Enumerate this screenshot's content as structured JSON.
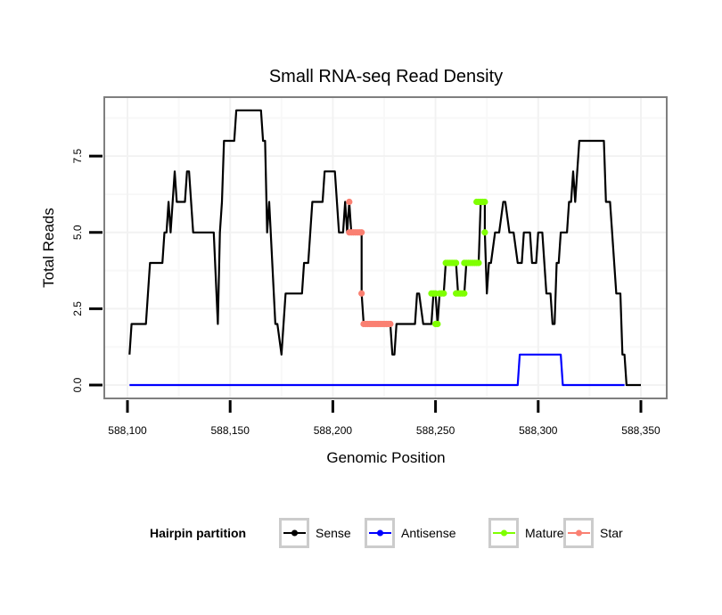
{
  "chart_data": {
    "type": "line",
    "title": "Small RNA-seq Read Density",
    "xlabel": "Genomic Position",
    "ylabel": "Total Reads",
    "x_base": 588100,
    "xlim": [
      588089,
      588361
    ],
    "ylim": [
      -0.4,
      9.3
    ],
    "x_ticks": [
      588100,
      588150,
      588200,
      588250,
      588300,
      588350
    ],
    "x_tick_labels": [
      "588,100",
      "588,150",
      "588,200",
      "588,250",
      "588,300",
      "588,350"
    ],
    "y_ticks": [
      0,
      2.5,
      5,
      7.5
    ],
    "y_tick_labels": [
      "0.0",
      "2.5",
      "5.0",
      "7.5"
    ],
    "grid": true,
    "legend": {
      "title": "Hairpin partition",
      "position": "bottom",
      "entries": [
        {
          "name": "Sense",
          "color": "#000000"
        },
        {
          "name": "Antisense",
          "color": "#0000ff"
        },
        {
          "name": "Mature",
          "color": "#7fff00"
        },
        {
          "name": "Star",
          "color": "#fa8072"
        }
      ]
    },
    "series": [
      {
        "name": "Sense",
        "color": "#000000",
        "style": "line",
        "points": [
          [
            588101,
            1
          ],
          [
            588102,
            2
          ],
          [
            588109,
            2
          ],
          [
            588110,
            3
          ],
          [
            588111,
            4
          ],
          [
            588117,
            4
          ],
          [
            588118,
            5
          ],
          [
            588119,
            5
          ],
          [
            588120,
            6
          ],
          [
            588121,
            5
          ],
          [
            588123,
            7
          ],
          [
            588124,
            6
          ],
          [
            588128,
            6
          ],
          [
            588129,
            7
          ],
          [
            588130,
            7
          ],
          [
            588132,
            5
          ],
          [
            588142,
            5
          ],
          [
            588144,
            2
          ],
          [
            588145,
            5
          ],
          [
            588146,
            6
          ],
          [
            588147,
            8
          ],
          [
            588152,
            8
          ],
          [
            588153,
            9
          ],
          [
            588165,
            9
          ],
          [
            588166,
            8
          ],
          [
            588167,
            8
          ],
          [
            588168,
            5
          ],
          [
            588169,
            6
          ],
          [
            588172,
            2
          ],
          [
            588173,
            2
          ],
          [
            588175,
            1
          ],
          [
            588176,
            2
          ],
          [
            588177,
            3
          ],
          [
            588185,
            3
          ],
          [
            588186,
            4
          ],
          [
            588188,
            4
          ],
          [
            588190,
            6
          ],
          [
            588195,
            6
          ],
          [
            588196,
            7
          ],
          [
            588201,
            7
          ],
          [
            588203,
            5
          ],
          [
            588205,
            5
          ],
          [
            588206,
            6
          ],
          [
            588207,
            5
          ],
          [
            588208,
            6
          ],
          [
            588209,
            5
          ],
          [
            588214,
            5
          ],
          [
            588214,
            3
          ],
          [
            588215,
            2
          ],
          [
            588228,
            2
          ],
          [
            588229,
            1
          ],
          [
            588230,
            1
          ],
          [
            588231,
            2
          ],
          [
            588240,
            2
          ],
          [
            588241,
            3
          ],
          [
            588242,
            3
          ],
          [
            588244,
            2
          ],
          [
            588248,
            2
          ],
          [
            588249,
            3
          ],
          [
            588250,
            3
          ],
          [
            588251,
            2
          ],
          [
            588252,
            3
          ],
          [
            588254,
            3
          ],
          [
            588255,
            4
          ],
          [
            588260,
            4
          ],
          [
            588261,
            3
          ],
          [
            588264,
            3
          ],
          [
            588265,
            4
          ],
          [
            588271,
            4
          ],
          [
            588272,
            6
          ],
          [
            588274,
            6
          ],
          [
            588274,
            5
          ],
          [
            588275,
            3
          ],
          [
            588276,
            4
          ],
          [
            588277,
            4
          ],
          [
            588279,
            5
          ],
          [
            588281,
            5
          ],
          [
            588283,
            6
          ],
          [
            588284,
            6
          ],
          [
            588286,
            5
          ],
          [
            588288,
            5
          ],
          [
            588290,
            4
          ],
          [
            588292,
            4
          ],
          [
            588293,
            5
          ],
          [
            588296,
            5
          ],
          [
            588297,
            4
          ],
          [
            588299,
            4
          ],
          [
            588300,
            5
          ],
          [
            588302,
            5
          ],
          [
            588304,
            3
          ],
          [
            588306,
            3
          ],
          [
            588307,
            2
          ],
          [
            588308,
            2
          ],
          [
            588309,
            4
          ],
          [
            588310,
            4
          ],
          [
            588311,
            5
          ],
          [
            588314,
            5
          ],
          [
            588315,
            6
          ],
          [
            588316,
            6
          ],
          [
            588317,
            7
          ],
          [
            588318,
            6
          ],
          [
            588320,
            8
          ],
          [
            588332,
            8
          ],
          [
            588333,
            6
          ],
          [
            588335,
            6
          ],
          [
            588338,
            3
          ],
          [
            588340,
            3
          ],
          [
            588341,
            1
          ],
          [
            588342,
            1
          ],
          [
            588343,
            0
          ],
          [
            588350,
            0
          ]
        ]
      },
      {
        "name": "Antisense",
        "color": "#0000ff",
        "style": "line",
        "points": [
          [
            588101,
            0
          ],
          [
            588290,
            0
          ],
          [
            588291,
            1
          ],
          [
            588311,
            1
          ],
          [
            588312,
            0
          ],
          [
            588342,
            0
          ]
        ]
      },
      {
        "name": "Mature",
        "color": "#7fff00",
        "style": "points",
        "points": [
          [
            588248,
            3
          ],
          [
            588249,
            3
          ],
          [
            588250,
            3
          ],
          [
            588250,
            2
          ],
          [
            588251,
            2
          ],
          [
            588252,
            3
          ],
          [
            588253,
            3
          ],
          [
            588254,
            3
          ],
          [
            588255,
            4
          ],
          [
            588256,
            4
          ],
          [
            588257,
            4
          ],
          [
            588258,
            4
          ],
          [
            588259,
            4
          ],
          [
            588260,
            4
          ],
          [
            588260,
            3
          ],
          [
            588261,
            3
          ],
          [
            588262,
            3
          ],
          [
            588263,
            3
          ],
          [
            588264,
            3
          ],
          [
            588264,
            4
          ],
          [
            588265,
            4
          ],
          [
            588266,
            4
          ],
          [
            588267,
            4
          ],
          [
            588268,
            4
          ],
          [
            588269,
            4
          ],
          [
            588270,
            4
          ],
          [
            588271,
            4
          ],
          [
            588270,
            6
          ],
          [
            588271,
            6
          ],
          [
            588272,
            6
          ],
          [
            588273,
            6
          ],
          [
            588274,
            6
          ],
          [
            588274,
            5
          ]
        ]
      },
      {
        "name": "Star",
        "color": "#fa8072",
        "style": "points",
        "points": [
          [
            588208,
            6
          ],
          [
            588208,
            5
          ],
          [
            588209,
            5
          ],
          [
            588210,
            5
          ],
          [
            588211,
            5
          ],
          [
            588212,
            5
          ],
          [
            588213,
            5
          ],
          [
            588214,
            5
          ],
          [
            588214,
            3
          ],
          [
            588215,
            2
          ],
          [
            588216,
            2
          ],
          [
            588217,
            2
          ],
          [
            588218,
            2
          ],
          [
            588219,
            2
          ],
          [
            588220,
            2
          ],
          [
            588221,
            2
          ],
          [
            588222,
            2
          ],
          [
            588223,
            2
          ],
          [
            588224,
            2
          ],
          [
            588225,
            2
          ],
          [
            588226,
            2
          ],
          [
            588227,
            2
          ],
          [
            588228,
            2
          ]
        ]
      }
    ]
  }
}
